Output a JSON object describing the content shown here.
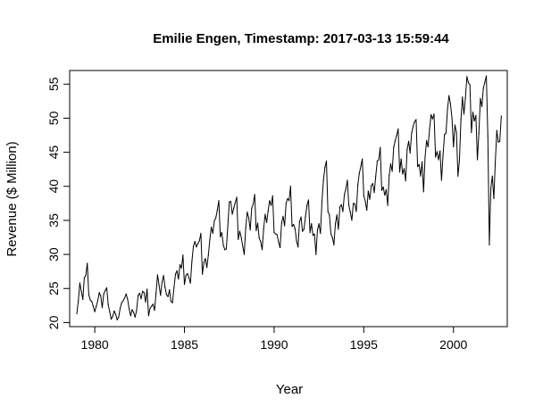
{
  "chart_data": {
    "type": "line",
    "title": "Emilie Engen, Timestamp: 2017-03-13 15:59:44",
    "xlabel": "Year",
    "ylabel": "Revenue ($ Million)",
    "xlim": [
      1978.6,
      2003.0
    ],
    "ylim": [
      19.4,
      57.0
    ],
    "xticks": [
      1980,
      1985,
      1990,
      1995,
      2000
    ],
    "xtick_labels": [
      "1980",
      "1985",
      "1990",
      "1995",
      "2000"
    ],
    "yticks": [
      20,
      25,
      30,
      35,
      40,
      45,
      50,
      55
    ],
    "ytick_labels": [
      "20",
      "25",
      "30",
      "35",
      "40",
      "45",
      "50",
      "55"
    ],
    "grid": false,
    "legend": "none",
    "line_color": "#000000",
    "x_start": 1979.0,
    "frequency": "monthly",
    "series": [
      {
        "values": [
          21.3,
          23.2,
          25.8,
          24.6,
          23.4,
          26.6,
          26.9,
          28.7,
          24.1,
          23.3,
          23.1,
          22.4,
          21.6,
          22.4,
          23.2,
          24.4,
          23.9,
          22.2,
          24.2,
          24.7,
          25.1,
          22.6,
          21.6,
          20.5,
          20.9,
          21.7,
          21.2,
          20.4,
          20.8,
          22.1,
          22.9,
          23.2,
          23.6,
          24.2,
          23.4,
          22.0,
          21.0,
          21.9,
          21.5,
          20.8,
          21.8,
          24.0,
          24.3,
          23.5,
          24.6,
          24.4,
          23.0,
          24.9,
          21.0,
          22.1,
          22.4,
          22.7,
          21.8,
          24.3,
          27.0,
          25.5,
          24.0,
          25.9,
          26.9,
          25.2,
          24.1,
          23.8,
          24.8,
          23.1,
          22.9,
          25.1,
          27.1,
          27.6,
          26.4,
          28.5,
          28.0,
          29.9,
          25.6,
          26.9,
          27.2,
          26.6,
          25.8,
          29.0,
          31.2,
          31.9,
          31.1,
          31.6,
          32.0,
          33.1,
          27.1,
          28.8,
          29.4,
          28.1,
          29.9,
          32.2,
          34.0,
          33.1,
          34.9,
          35.4,
          36.5,
          37.9,
          32.6,
          33.2,
          31.4,
          30.7,
          30.8,
          34.1,
          37.7,
          37.8,
          35.9,
          36.8,
          37.6,
          38.4,
          32.2,
          33.4,
          32.5,
          31.2,
          30.0,
          33.9,
          36.2,
          35.4,
          33.6,
          36.8,
          37.4,
          38.8,
          33.5,
          34.6,
          32.4,
          31.9,
          30.7,
          33.8,
          35.9,
          34.7,
          36.4,
          37.9,
          37.2,
          38.6,
          33.2,
          33.0,
          32.9,
          31.8,
          31.0,
          34.6,
          35.6,
          34.2,
          37.5,
          38.2,
          37.9,
          40.0,
          34.1,
          34.4,
          33.8,
          32.0,
          31.1,
          34.8,
          35.5,
          33.4,
          33.7,
          35.6,
          37.2,
          38.0,
          33.2,
          34.5,
          32.8,
          33.0,
          30.0,
          33.6,
          34.5,
          33.1,
          37.8,
          40.9,
          42.8,
          43.7,
          36.3,
          35.8,
          33.0,
          32.5,
          31.4,
          34.5,
          35.8,
          33.7,
          37.0,
          37.3,
          36.3,
          38.8,
          39.6,
          40.9,
          37.2,
          36.2,
          35.0,
          37.5,
          37.4,
          36.3,
          40.2,
          41.9,
          42.9,
          44.0,
          38.6,
          37.8,
          36.5,
          39.3,
          38.1,
          40.1,
          40.4,
          39.1,
          41.5,
          43.7,
          43.9,
          45.7,
          39.4,
          39.9,
          38.7,
          39.5,
          37.2,
          41.6,
          43.3,
          42.2,
          45.7,
          46.7,
          47.5,
          48.4,
          42.1,
          44.0,
          41.8,
          42.6,
          40.8,
          45.4,
          46.6,
          44.9,
          47.8,
          48.8,
          49.5,
          49.8,
          42.9,
          43.2,
          41.5,
          43.6,
          39.2,
          44.3,
          46.7,
          45.8,
          48.4,
          50.5,
          49.9,
          50.6,
          44.3,
          45.1,
          43.9,
          45.2,
          40.9,
          44.5,
          47.6,
          47.8,
          51.3,
          53.3,
          52.1,
          50.0,
          45.8,
          49.0,
          47.9,
          41.5,
          43.8,
          49.8,
          53.1,
          50.6,
          53.0,
          56.1,
          55.2,
          54.9,
          47.9,
          50.9,
          49.6,
          50.4,
          43.9,
          47.8,
          52.9,
          51.7,
          54.4,
          55.3,
          56.2,
          47.4,
          31.4,
          39.7,
          41.5,
          38.2,
          43.6,
          48.2,
          46.5,
          46.6,
          50.3
        ]
      }
    ]
  }
}
